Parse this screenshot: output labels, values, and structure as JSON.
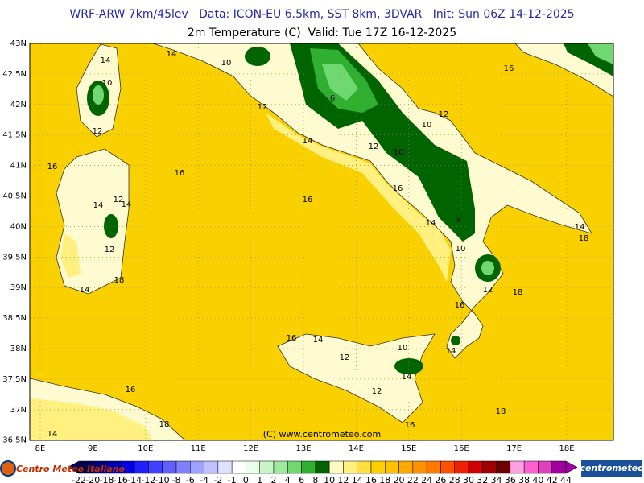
{
  "header": {
    "line1": "WRF-ARW 7km/45lev   Data: ICON-EU 6.5km, SST 8km, 3DVAR   Init: Sun 06Z 14-12-2025",
    "line2": "2m Temperature (C)  Valid: Tue 17Z 16-12-2025"
  },
  "map": {
    "lat_ticks": [
      {
        "value": 43,
        "label": "43N"
      },
      {
        "value": 42.5,
        "label": "42.5N"
      },
      {
        "value": 42,
        "label": "42N"
      },
      {
        "value": 41.5,
        "label": "41.5N"
      },
      {
        "value": 41,
        "label": "41N"
      },
      {
        "value": 40.5,
        "label": "40.5N"
      },
      {
        "value": 40,
        "label": "40N"
      },
      {
        "value": 39.5,
        "label": "39.5N"
      },
      {
        "value": 39,
        "label": "39N"
      },
      {
        "value": 38.5,
        "label": "38.5N"
      },
      {
        "value": 38,
        "label": "38N"
      },
      {
        "value": 37.5,
        "label": "37.5N"
      },
      {
        "value": 37,
        "label": "37N"
      },
      {
        "value": 36.5,
        "label": "36.5N"
      }
    ],
    "lon_ticks": [
      {
        "value": 8,
        "label": "8E"
      },
      {
        "value": 9,
        "label": "9E"
      },
      {
        "value": 10,
        "label": "10E"
      },
      {
        "value": 11,
        "label": "11E"
      },
      {
        "value": 12,
        "label": "12E"
      },
      {
        "value": 13,
        "label": "13E"
      },
      {
        "value": 14,
        "label": "14E"
      },
      {
        "value": 15,
        "label": "15E"
      },
      {
        "value": 16,
        "label": "16E"
      },
      {
        "value": 17,
        "label": "17E"
      },
      {
        "value": 18,
        "label": "18E"
      }
    ],
    "contour_labels": [
      14,
      10,
      12,
      14,
      10,
      12,
      6,
      12,
      10,
      16,
      14,
      12,
      10,
      16,
      16,
      12,
      14,
      14,
      16,
      16,
      14,
      8,
      14,
      18,
      12,
      10,
      14,
      18,
      12,
      18,
      16,
      16,
      14,
      12,
      10,
      14,
      14,
      12,
      16,
      18,
      18,
      14,
      16
    ],
    "credit": "(C) www.centrometeo.com",
    "sea_color": "#f9d000"
  },
  "colorbar": {
    "labels": [
      -22,
      -20,
      -18,
      -16,
      -14,
      -12,
      -10,
      -8,
      -6,
      -4,
      -2,
      -1,
      0,
      1,
      2,
      4,
      6,
      8,
      10,
      12,
      14,
      16,
      18,
      20,
      22,
      24,
      26,
      28,
      30,
      32,
      34,
      36,
      38,
      40,
      42,
      44
    ],
    "colors": [
      "#000050",
      "#000080",
      "#0000b0",
      "#0000e0",
      "#2020ff",
      "#4040ff",
      "#6060ff",
      "#8080ff",
      "#a0a0ff",
      "#c0c0ff",
      "#e0e0ff",
      "#ffffff",
      "#e8ffe8",
      "#c8f5c8",
      "#a0eaa0",
      "#70d870",
      "#30b030",
      "#006400",
      "#fffac0",
      "#fff080",
      "#ffe040",
      "#ffd000",
      "#ffc000",
      "#ffa800",
      "#ff9000",
      "#ff7800",
      "#ff5000",
      "#f02000",
      "#d00000",
      "#a00000",
      "#700000",
      "#ffa0e0",
      "#ff60d0",
      "#e040c0",
      "#a000a0"
    ]
  },
  "logos": {
    "left": "Centro Meteo Italiano",
    "right": "centrometeo"
  }
}
